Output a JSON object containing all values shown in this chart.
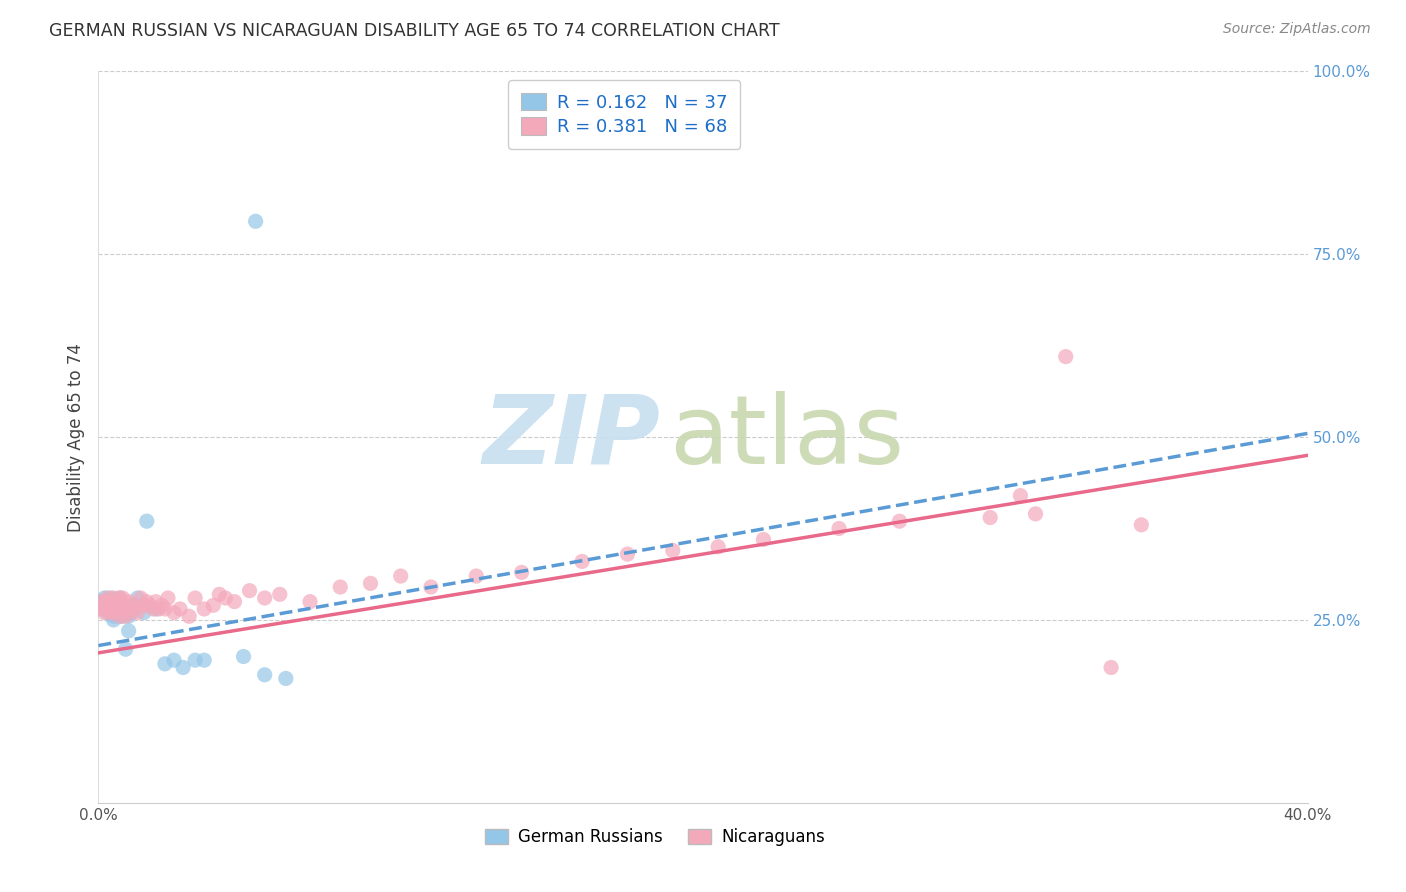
{
  "title": "GERMAN RUSSIAN VS NICARAGUAN DISABILITY AGE 65 TO 74 CORRELATION CHART",
  "source": "Source: ZipAtlas.com",
  "ylabel": "Disability Age 65 to 74",
  "xmin": 0.0,
  "xmax": 0.4,
  "ymin": 0.0,
  "ymax": 1.0,
  "xtick_positions": [
    0.0,
    0.1,
    0.2,
    0.3,
    0.4
  ],
  "xtick_labels": [
    "0.0%",
    "",
    "",
    "",
    "40.0%"
  ],
  "ytick_labels_right": [
    "25.0%",
    "50.0%",
    "75.0%",
    "100.0%"
  ],
  "ytick_vals_right": [
    0.25,
    0.5,
    0.75,
    1.0
  ],
  "legend_label1": "R = 0.162   N = 37",
  "legend_label2": "R = 0.381   N = 68",
  "color_blue": "#94C6E7",
  "color_pink": "#F4A9BB",
  "trendline_blue_color": "#5B9BD5",
  "trendline_pink_color": "#E8698A",
  "blue_trend_x0": 0.0,
  "blue_trend_x1": 0.4,
  "blue_trend_y0": 0.215,
  "blue_trend_y1": 0.505,
  "pink_trend_x0": 0.0,
  "pink_trend_x1": 0.4,
  "pink_trend_y0": 0.205,
  "pink_trend_y1": 0.475,
  "background_color": "#FFFFFF",
  "grid_color": "#CCCCCC",
  "watermark_zip_color": "#C8DFF0",
  "watermark_atlas_color": "#C8D8B0",
  "gr_x": [
    0.001,
    0.001,
    0.002,
    0.002,
    0.002,
    0.003,
    0.003,
    0.003,
    0.004,
    0.004,
    0.005,
    0.005,
    0.005,
    0.005,
    0.006,
    0.006,
    0.007,
    0.007,
    0.008,
    0.009,
    0.01,
    0.01,
    0.011,
    0.012,
    0.013,
    0.015,
    0.016,
    0.019,
    0.022,
    0.025,
    0.028,
    0.032,
    0.035,
    0.048,
    0.055,
    0.062,
    0.052
  ],
  "gr_y": [
    0.27,
    0.275,
    0.265,
    0.28,
    0.275,
    0.27,
    0.26,
    0.275,
    0.265,
    0.28,
    0.25,
    0.265,
    0.275,
    0.255,
    0.27,
    0.265,
    0.255,
    0.28,
    0.255,
    0.21,
    0.255,
    0.235,
    0.26,
    0.27,
    0.28,
    0.26,
    0.385,
    0.265,
    0.19,
    0.195,
    0.185,
    0.195,
    0.195,
    0.2,
    0.175,
    0.17,
    0.795
  ],
  "nic_x": [
    0.001,
    0.001,
    0.002,
    0.002,
    0.003,
    0.003,
    0.003,
    0.004,
    0.004,
    0.005,
    0.005,
    0.005,
    0.006,
    0.006,
    0.007,
    0.007,
    0.008,
    0.008,
    0.008,
    0.009,
    0.009,
    0.01,
    0.01,
    0.011,
    0.012,
    0.013,
    0.014,
    0.015,
    0.016,
    0.017,
    0.018,
    0.019,
    0.02,
    0.021,
    0.022,
    0.023,
    0.025,
    0.027,
    0.03,
    0.032,
    0.035,
    0.038,
    0.04,
    0.042,
    0.045,
    0.05,
    0.055,
    0.06,
    0.07,
    0.08,
    0.09,
    0.1,
    0.11,
    0.125,
    0.14,
    0.16,
    0.175,
    0.19,
    0.205,
    0.22,
    0.245,
    0.265,
    0.295,
    0.305,
    0.31,
    0.32,
    0.335,
    0.345
  ],
  "nic_y": [
    0.275,
    0.265,
    0.27,
    0.26,
    0.275,
    0.265,
    0.28,
    0.27,
    0.26,
    0.28,
    0.27,
    0.26,
    0.275,
    0.265,
    0.28,
    0.255,
    0.275,
    0.27,
    0.28,
    0.265,
    0.255,
    0.275,
    0.26,
    0.27,
    0.265,
    0.26,
    0.28,
    0.27,
    0.275,
    0.27,
    0.265,
    0.275,
    0.265,
    0.27,
    0.265,
    0.28,
    0.26,
    0.265,
    0.255,
    0.28,
    0.265,
    0.27,
    0.285,
    0.28,
    0.275,
    0.29,
    0.28,
    0.285,
    0.275,
    0.295,
    0.3,
    0.31,
    0.295,
    0.31,
    0.315,
    0.33,
    0.34,
    0.345,
    0.35,
    0.36,
    0.375,
    0.385,
    0.39,
    0.42,
    0.395,
    0.61,
    0.185,
    0.38
  ]
}
